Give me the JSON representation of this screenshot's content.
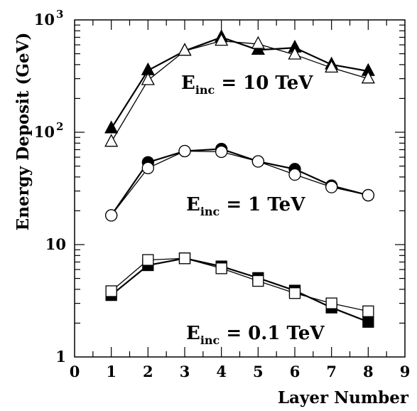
{
  "chart_data": {
    "type": "line",
    "xlabel": "Layer Number",
    "ylabel": "Energy Deposit (GeV)",
    "xlim": [
      0,
      9
    ],
    "ylim": [
      1,
      1000
    ],
    "yscale": "log",
    "grid": false,
    "xticks": [
      "0",
      "1",
      "2",
      "3",
      "4",
      "5",
      "6",
      "7",
      "8",
      "9"
    ],
    "yticks": [
      {
        "value": 1,
        "label": "1"
      },
      {
        "value": 10,
        "label": "10"
      },
      {
        "value": 100,
        "base": "10",
        "exp": "2"
      },
      {
        "value": 1000,
        "base": "10",
        "exp": "3"
      }
    ],
    "x": [
      1,
      2,
      3,
      4,
      5,
      6,
      7,
      8
    ],
    "series": [
      {
        "marker": "triangle",
        "filled": true,
        "values": [
          108,
          355,
          530,
          700,
          540,
          565,
          400,
          350
        ]
      },
      {
        "marker": "triangle",
        "filled": false,
        "values": [
          82,
          290,
          530,
          650,
          610,
          490,
          375,
          300
        ]
      },
      {
        "marker": "circle",
        "filled": true,
        "values": [
          18.2,
          54,
          68,
          71,
          55,
          47,
          33.5,
          27.5
        ]
      },
      {
        "marker": "circle",
        "filled": false,
        "values": [
          18.2,
          48,
          68,
          67,
          55,
          42,
          32.5,
          27.5
        ]
      },
      {
        "marker": "square",
        "filled": true,
        "values": [
          3.55,
          6.55,
          7.55,
          6.4,
          5.05,
          3.9,
          2.75,
          2.05
        ]
      },
      {
        "marker": "square",
        "filled": false,
        "values": [
          3.85,
          7.3,
          7.55,
          6.15,
          4.75,
          3.7,
          3.0,
          2.55
        ]
      }
    ],
    "annotations": [
      {
        "main": "E",
        "sub": "inc",
        "rest": " = 10 TeV"
      },
      {
        "main": "E",
        "sub": "inc",
        "rest": " = 1 TeV"
      },
      {
        "main": "E",
        "sub": "inc",
        "rest": " = 0.1 TeV"
      }
    ],
    "colors": {
      "line": "#000000",
      "fill": "#000000",
      "background": "#ffffff"
    }
  }
}
